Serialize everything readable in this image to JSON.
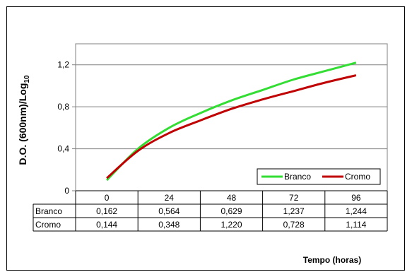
{
  "chart_data": {
    "type": "line",
    "title": "",
    "xlabel": "Tempo (horas)",
    "ylabel": "D.O. (600nm)/Log",
    "ylabel_sub": "10",
    "ylim": [
      0,
      1.4
    ],
    "yticks": [
      "0",
      "0,4",
      "0,8",
      "1,2"
    ],
    "x_categories": [
      "0",
      "24",
      "48",
      "72",
      "96"
    ],
    "grid": true,
    "legend_position": "bottom-right",
    "series": [
      {
        "name": "Branco",
        "color": "#33dd33",
        "table_values": [
          "0,162",
          "0,564",
          "0,629",
          "1,237",
          "1,244"
        ],
        "curve": [
          [
            0,
            0.1
          ],
          [
            12,
            0.4
          ],
          [
            24,
            0.6
          ],
          [
            36,
            0.74
          ],
          [
            48,
            0.86
          ],
          [
            60,
            0.96
          ],
          [
            72,
            1.06
          ],
          [
            84,
            1.14
          ],
          [
            96,
            1.22
          ]
        ]
      },
      {
        "name": "Cromo",
        "color": "#c00000",
        "table_values": [
          "0,144",
          "0,348",
          "1,220",
          "0,728",
          "1,114"
        ],
        "curve": [
          [
            0,
            0.12
          ],
          [
            12,
            0.38
          ],
          [
            24,
            0.55
          ],
          [
            36,
            0.67
          ],
          [
            48,
            0.78
          ],
          [
            60,
            0.87
          ],
          [
            72,
            0.95
          ],
          [
            84,
            1.03
          ],
          [
            96,
            1.1
          ]
        ]
      }
    ]
  }
}
